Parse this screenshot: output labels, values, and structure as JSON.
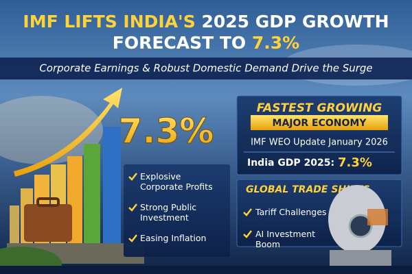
{
  "header": {
    "title_line1_highlight": "IMF LIFTS INDIA'S",
    "title_line1_rest": "2025 GDP GROWTH",
    "title_line2_lead": "FORECAST TO",
    "title_line2_value": "7.3%",
    "subtitle": "Corporate Earnings & Robust Domestic Demand Drive the Surge"
  },
  "hero": {
    "value": "7.3%"
  },
  "drivers": [
    "Explosive Corporate Profits",
    "Strong Public Investment",
    "Easing Inflation"
  ],
  "economy_panel": {
    "heading": "FASTEST GROWING",
    "banner": "MAJOR ECONOMY",
    "source": "IMF WEO Update January 2026",
    "gdp_label": "India GDP 2025:",
    "gdp_value": "7.3%"
  },
  "trade_panel": {
    "heading": "GLOBAL TRADE SHIFTS",
    "items": [
      "Tariff Challenges",
      "AI Investment Boom"
    ]
  }
}
